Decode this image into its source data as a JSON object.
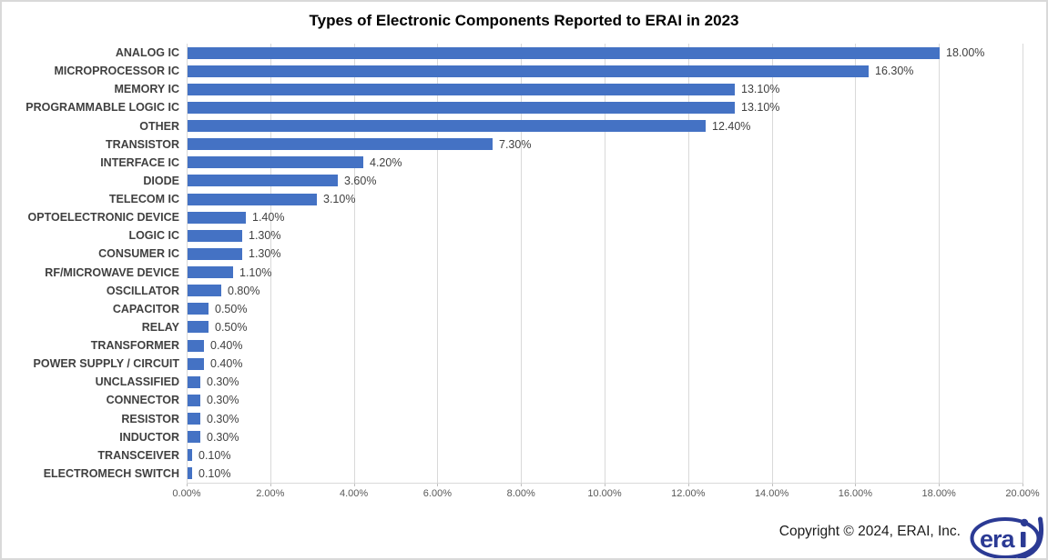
{
  "chart_data": {
    "type": "bar",
    "orientation": "horizontal",
    "title": "Types of Electronic Components Reported to ERAI in 2023",
    "xlabel": "",
    "ylabel": "",
    "categories": [
      "ANALOG IC",
      "MICROPROCESSOR IC",
      "MEMORY IC",
      "PROGRAMMABLE LOGIC IC",
      "OTHER",
      "TRANSISTOR",
      "INTERFACE IC",
      "DIODE",
      "TELECOM IC",
      "OPTOELECTRONIC DEVICE",
      "LOGIC IC",
      "CONSUMER IC",
      "RF/MICROWAVE DEVICE",
      "OSCILLATOR",
      "CAPACITOR",
      "RELAY",
      "TRANSFORMER",
      "POWER SUPPLY / CIRCUIT",
      "UNCLASSIFIED",
      "CONNECTOR",
      "RESISTOR",
      "INDUCTOR",
      "TRANSCEIVER",
      "ELECTROMECH SWITCH"
    ],
    "values": [
      18.0,
      16.3,
      13.1,
      13.1,
      12.4,
      7.3,
      4.2,
      3.6,
      3.1,
      1.4,
      1.3,
      1.3,
      1.1,
      0.8,
      0.5,
      0.5,
      0.4,
      0.4,
      0.3,
      0.3,
      0.3,
      0.3,
      0.1,
      0.1
    ],
    "value_labels": [
      "18.00%",
      "16.30%",
      "13.10%",
      "13.10%",
      "12.40%",
      "7.30%",
      "4.20%",
      "3.60%",
      "3.10%",
      "1.40%",
      "1.30%",
      "1.30%",
      "1.10%",
      "0.80%",
      "0.50%",
      "0.50%",
      "0.40%",
      "0.40%",
      "0.30%",
      "0.30%",
      "0.30%",
      "0.30%",
      "0.10%",
      "0.10%"
    ],
    "x_ticks": [
      "0.00%",
      "2.00%",
      "4.00%",
      "6.00%",
      "8.00%",
      "10.00%",
      "12.00%",
      "14.00%",
      "16.00%",
      "18.00%",
      "20.00%"
    ],
    "xlim": [
      0,
      20
    ],
    "grid": true,
    "legend": "none",
    "bar_color": "#4472C4",
    "gridline_color": "#D9D9D9"
  },
  "footer": {
    "copyright": "Copyright © 2024, ERAI, Inc.",
    "logo_text": "era",
    "logo_color": "#2B3A94"
  }
}
